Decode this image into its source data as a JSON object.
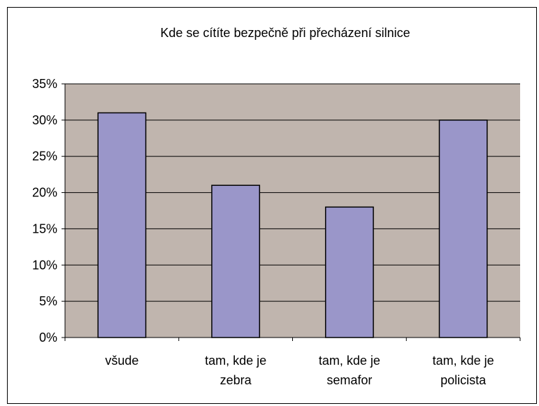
{
  "chart_data": {
    "type": "bar",
    "title": "Kde se cítíte bezpečně při přecházení silnice",
    "categories": [
      [
        "všude"
      ],
      [
        "tam, kde je",
        "zebra"
      ],
      [
        "tam, kde je",
        "semafor"
      ],
      [
        "tam, kde je",
        "policista"
      ]
    ],
    "values": [
      31,
      21,
      18,
      30
    ],
    "ylim": [
      0,
      35
    ],
    "ytick_step": 5,
    "ytick_labels": [
      "0%",
      "5%",
      "10%",
      "15%",
      "20%",
      "25%",
      "30%",
      "35%"
    ],
    "grid": true,
    "legend": "none",
    "colors": {
      "plot_bg": "#c0b5ae",
      "bar_fill": "#9a96c9",
      "bar_stroke": "#000000",
      "gridline": "#000000"
    }
  }
}
